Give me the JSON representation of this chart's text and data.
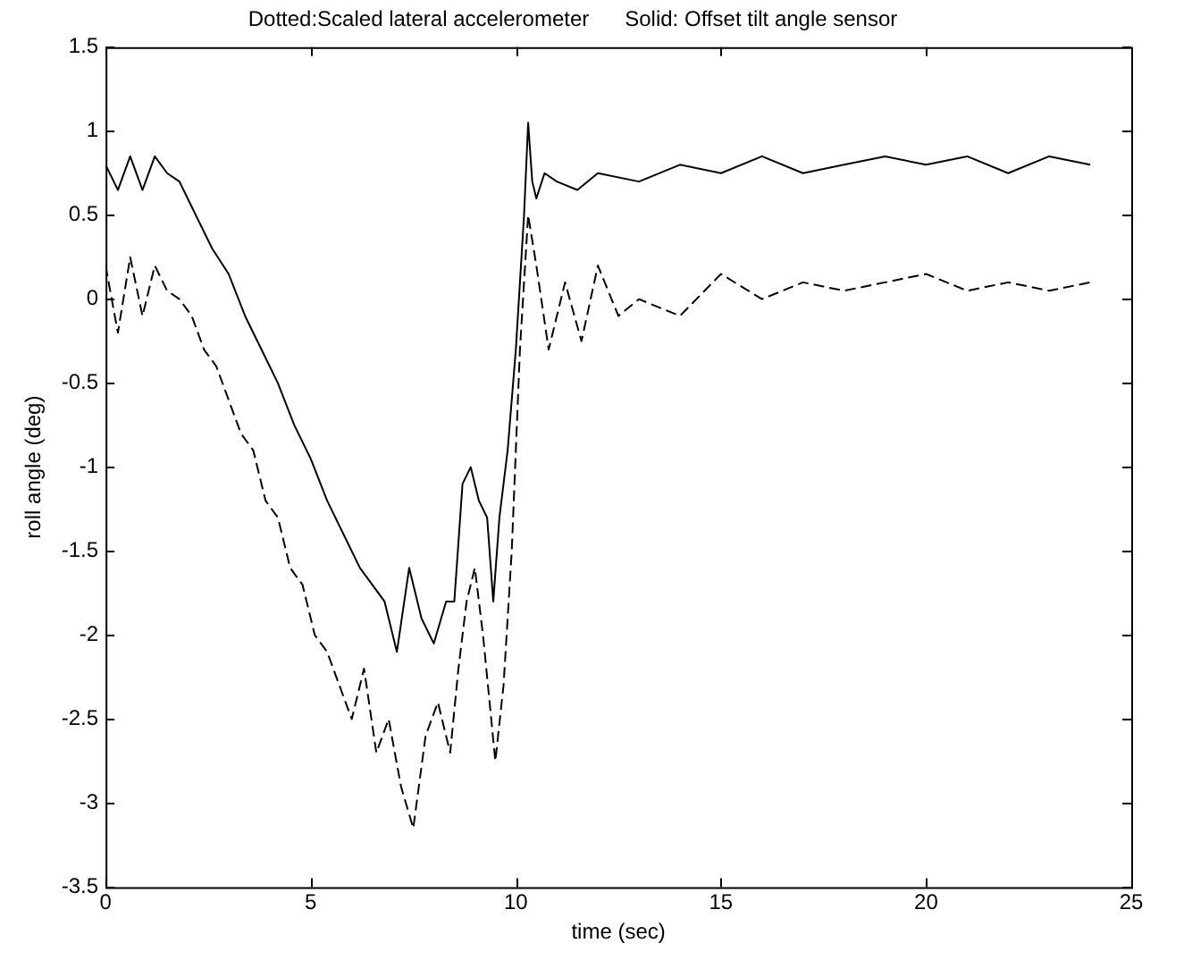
{
  "chart_data": {
    "type": "line",
    "title": "Dotted:Scaled lateral accelerometer      Solid: Offset tilt angle sensor",
    "xlabel": "time (sec)",
    "ylabel": "roll angle (deg)",
    "xlim": [
      0,
      25
    ],
    "xticks": [
      0,
      5,
      10,
      15,
      20,
      25
    ],
    "ylim": [
      -3.5,
      1.5
    ],
    "yticks": [
      -3.5,
      -3,
      -2.5,
      -2,
      -1.5,
      -1,
      -0.5,
      0,
      0.5,
      1,
      1.5
    ],
    "grid": false,
    "legend": false,
    "marker": "none",
    "series": [
      {
        "color": "#000000",
        "line_style": "solid",
        "x": [
          0,
          0.3,
          0.6,
          0.9,
          1.2,
          1.5,
          1.8,
          2.2,
          2.6,
          3.0,
          3.4,
          3.8,
          4.2,
          4.6,
          5.0,
          5.4,
          5.8,
          6.2,
          6.5,
          6.8,
          7.1,
          7.4,
          7.7,
          8.0,
          8.3,
          8.5,
          8.7,
          8.9,
          9.1,
          9.3,
          9.45,
          9.6,
          9.8,
          10.0,
          10.2,
          10.3,
          10.4,
          10.5,
          10.7,
          11,
          11.5,
          12,
          13,
          14,
          15,
          16,
          17,
          18,
          19,
          20,
          21,
          22,
          23,
          24
        ],
        "values": [
          0.8,
          0.65,
          0.85,
          0.65,
          0.85,
          0.75,
          0.7,
          0.5,
          0.3,
          0.15,
          -0.1,
          -0.3,
          -0.5,
          -0.75,
          -0.95,
          -1.2,
          -1.4,
          -1.6,
          -1.7,
          -1.8,
          -2.1,
          -1.6,
          -1.9,
          -2.05,
          -1.8,
          -1.8,
          -1.1,
          -1.0,
          -1.2,
          -1.3,
          -1.8,
          -1.3,
          -0.9,
          -0.3,
          0.5,
          1.05,
          0.7,
          0.6,
          0.75,
          0.7,
          0.65,
          0.75,
          0.7,
          0.8,
          0.75,
          0.85,
          0.75,
          0.8,
          0.85,
          0.8,
          0.85,
          0.75,
          0.85,
          0.8
        ]
      },
      {
        "color": "#000000",
        "line_style": "dashed",
        "x": [
          0,
          0.3,
          0.6,
          0.9,
          1.2,
          1.5,
          1.8,
          2.1,
          2.4,
          2.7,
          3.0,
          3.3,
          3.6,
          3.9,
          4.2,
          4.5,
          4.8,
          5.1,
          5.4,
          5.7,
          6.0,
          6.3,
          6.6,
          6.9,
          7.2,
          7.5,
          7.8,
          8.1,
          8.4,
          8.6,
          8.8,
          9.0,
          9.2,
          9.4,
          9.5,
          9.7,
          9.9,
          10.1,
          10.3,
          10.5,
          10.8,
          11.2,
          11.6,
          12,
          12.5,
          13,
          14,
          15,
          16,
          17,
          18,
          19,
          20,
          21,
          22,
          23,
          24
        ],
        "values": [
          0.2,
          -0.2,
          0.25,
          -0.1,
          0.2,
          0.05,
          0,
          -0.1,
          -0.3,
          -0.4,
          -0.6,
          -0.8,
          -0.9,
          -1.2,
          -1.3,
          -1.6,
          -1.7,
          -2.0,
          -2.1,
          -2.3,
          -2.5,
          -2.2,
          -2.7,
          -2.5,
          -2.9,
          -3.15,
          -2.6,
          -2.4,
          -2.7,
          -2.2,
          -1.8,
          -1.6,
          -2.0,
          -2.5,
          -2.75,
          -2.3,
          -1.5,
          -0.3,
          0.5,
          0.2,
          -0.3,
          0.1,
          -0.25,
          0.2,
          -0.1,
          0,
          -0.1,
          0.15,
          0,
          0.1,
          0.05,
          0.1,
          0.15,
          0.05,
          0.1,
          0.05,
          0.1
        ]
      }
    ]
  }
}
